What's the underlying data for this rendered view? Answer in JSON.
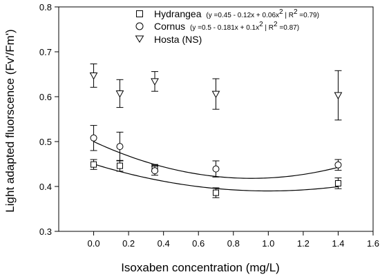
{
  "chart_data": {
    "type": "scatter",
    "xlabel": "Isoxaben concentration (mg/L)",
    "ylabel": "Light adapted fluorscence (Fv'/Fm')",
    "xlim": [
      -0.2,
      1.6
    ],
    "ylim": [
      0.3,
      0.8
    ],
    "xticks": [
      "0.0",
      "0.2",
      "0.4",
      "0.6",
      "0.8",
      "1.0",
      "1.2",
      "1.4",
      "1.6"
    ],
    "yticks": [
      "0.3",
      "0.4",
      "0.5",
      "0.6",
      "0.7",
      "0.8"
    ],
    "legend_position": "top-right",
    "series": [
      {
        "name": "Hydrangea",
        "equation": "(y =0.45  - 0.12x + 0.06x",
        "equation_tail": " | R",
        "equation_r2": " =0.79)",
        "marker": "square",
        "x": [
          0.0,
          0.15,
          0.35,
          0.7,
          1.4
        ],
        "y": [
          0.449,
          0.446,
          0.441,
          0.386,
          0.407
        ],
        "err": [
          0.011,
          0.012,
          0.008,
          0.011,
          0.012
        ],
        "fit": [
          0.45,
          -0.12,
          0.06
        ]
      },
      {
        "name": "Cornus",
        "equation": "(y =0.5 - 0.181x + 0.1x",
        "equation_tail": " | R",
        "equation_r2": " =0.87)",
        "marker": "circle",
        "x": [
          0.0,
          0.15,
          0.35,
          0.7,
          1.4
        ],
        "y": [
          0.508,
          0.489,
          0.435,
          0.439,
          0.448
        ],
        "err": [
          0.028,
          0.032,
          0.01,
          0.018,
          0.012
        ],
        "fit": [
          0.5,
          -0.181,
          0.1
        ]
      },
      {
        "name": "Hosta (NS)",
        "marker": "triangle-down",
        "x": [
          0.0,
          0.15,
          0.35,
          0.7,
          1.4
        ],
        "y": [
          0.647,
          0.607,
          0.634,
          0.606,
          0.603
        ],
        "err": [
          0.026,
          0.031,
          0.022,
          0.034,
          0.055
        ]
      }
    ]
  }
}
